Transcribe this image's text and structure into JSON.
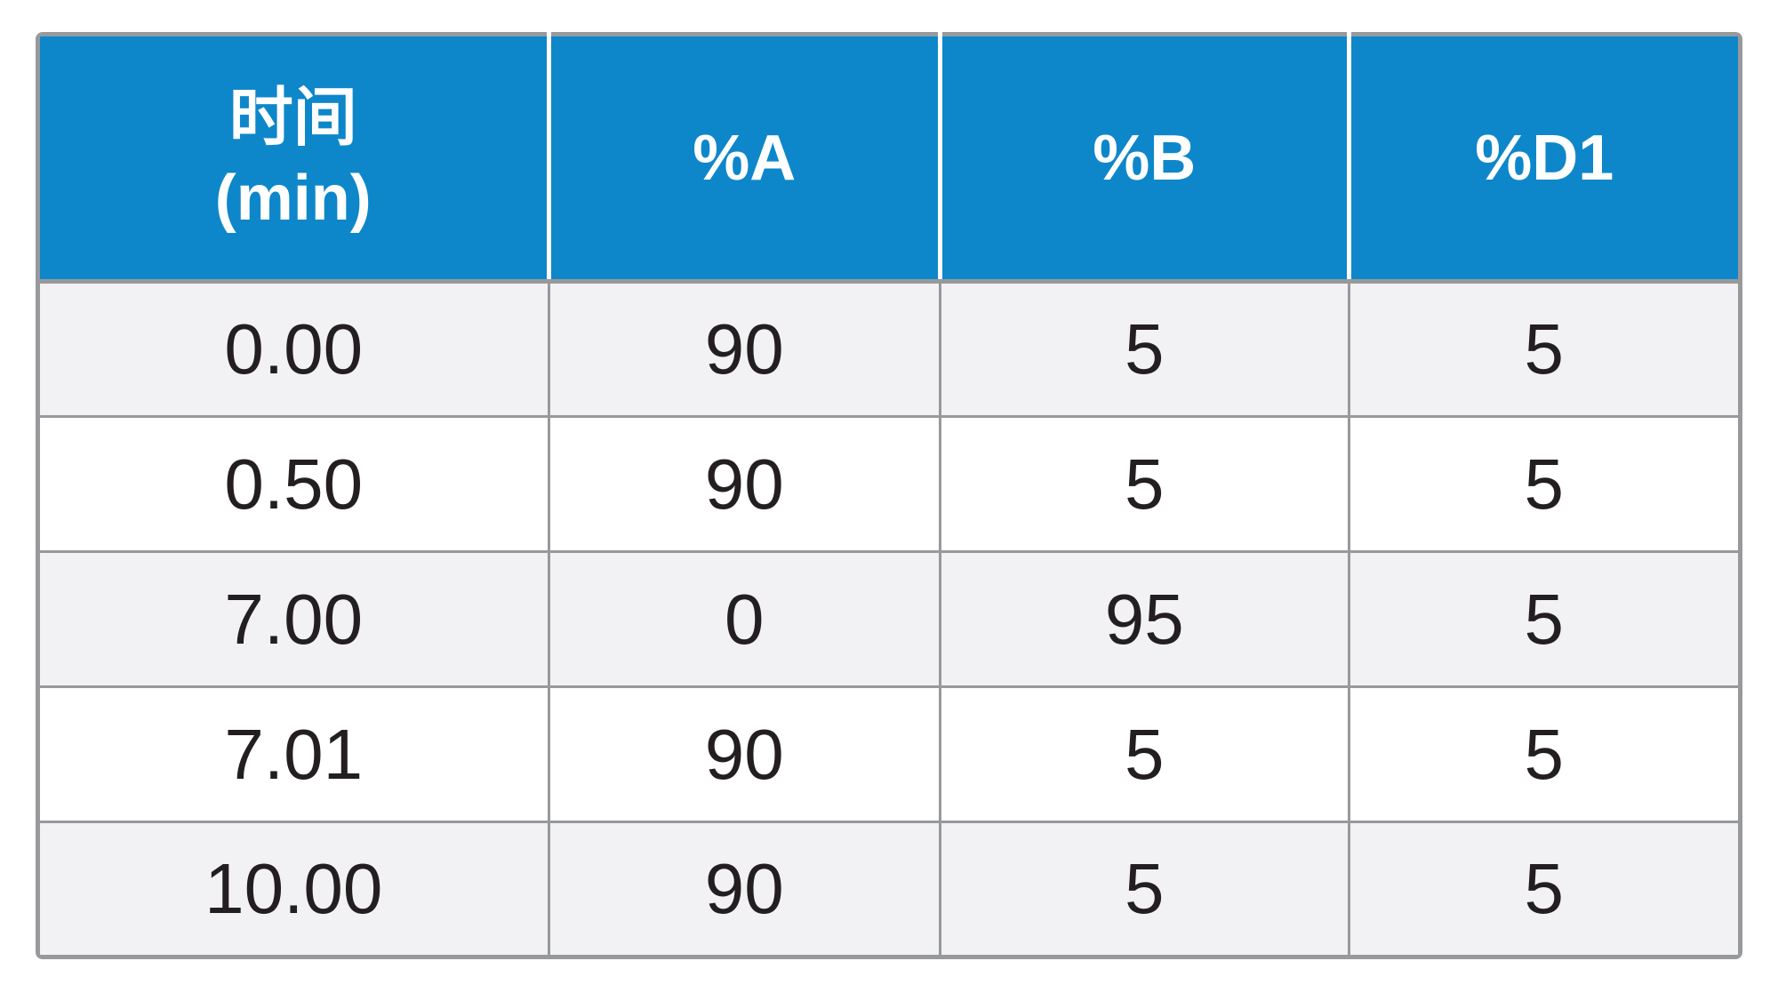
{
  "colors": {
    "header_bg": "#0e87ca",
    "header_text": "#ffffff",
    "border_gray": "#97999b",
    "row_alt_bg": "#f2f2f4",
    "row_white_bg": "#ffffff",
    "body_text": "#231f20"
  },
  "table": {
    "header": {
      "time_line1": "时间",
      "time_line2": "(min)",
      "col_a": "%A",
      "col_b": "%B",
      "col_d1": "%D1"
    },
    "rows": [
      {
        "time": "0.00",
        "a": "90",
        "b": "5",
        "d1": "5"
      },
      {
        "time": "0.50",
        "a": "90",
        "b": "5",
        "d1": "5"
      },
      {
        "time": "7.00",
        "a": "0",
        "b": "95",
        "d1": "5"
      },
      {
        "time": "7.01",
        "a": "90",
        "b": "5",
        "d1": "5"
      },
      {
        "time": "10.00",
        "a": "90",
        "b": "5",
        "d1": "5"
      }
    ]
  },
  "chart_data": {
    "type": "table",
    "title": "",
    "columns": [
      "时间 (min)",
      "%A",
      "%B",
      "%D1"
    ],
    "rows": [
      [
        "0.00",
        90,
        5,
        5
      ],
      [
        "0.50",
        90,
        5,
        5
      ],
      [
        "7.00",
        0,
        95,
        5
      ],
      [
        "7.01",
        90,
        5,
        5
      ],
      [
        "10.00",
        90,
        5,
        5
      ]
    ]
  }
}
